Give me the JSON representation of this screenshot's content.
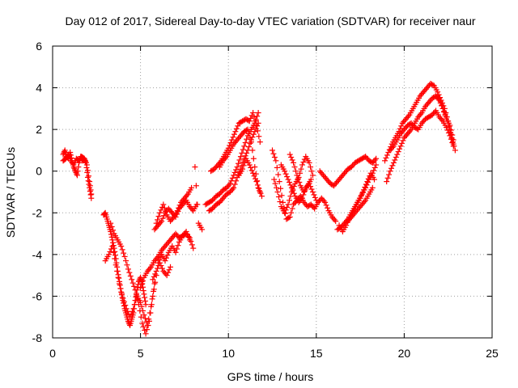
{
  "chart_data": {
    "type": "scatter",
    "title": "Day 012 of 2017, Sidereal Day-to-day VTEC variation (SDTVAR) for receiver naur",
    "xlabel": "GPS time / hours",
    "ylabel": "SDTVAR / TECUs",
    "xlim": [
      0,
      25
    ],
    "ylim": [
      -8,
      6
    ],
    "x_ticks": [
      "0",
      "5",
      "10",
      "15",
      "20",
      "25"
    ],
    "y_ticks": [
      "-8",
      "-6",
      "-4",
      "-2",
      "0",
      "2",
      "4",
      "6"
    ],
    "grid": true,
    "marker": "plus",
    "color": "#ff0000",
    "series": [
      {
        "tracks": [
          {
            "x": [
              0.6,
              0.7,
              0.8,
              0.9,
              1.0,
              1.1,
              1.2,
              1.3,
              1.4,
              1.5,
              1.6,
              1.7,
              1.8,
              1.9,
              2.0,
              2.1,
              2.2
            ],
            "y": [
              0.8,
              1.0,
              0.7,
              0.6,
              0.9,
              0.5,
              0.2,
              0.0,
              -0.2,
              0.4,
              0.7,
              0.5,
              0.6,
              0.4,
              -0.3,
              -0.8,
              -1.3
            ]
          },
          {
            "x": [
              0.6,
              0.75,
              0.9,
              1.05,
              1.2,
              1.35,
              1.5,
              1.65,
              1.8,
              1.95,
              2.1,
              2.2
            ],
            "y": [
              0.5,
              0.6,
              0.8,
              0.5,
              0.3,
              0.6,
              0.5,
              0.7,
              0.6,
              0.3,
              -0.5,
              -1.1
            ]
          },
          {
            "x": [
              2.9,
              3.0,
              3.1,
              3.2,
              3.3,
              3.4,
              3.5,
              3.6,
              3.7,
              3.8,
              3.9,
              4.0,
              4.1,
              4.2,
              4.3,
              4.4,
              4.5,
              4.6,
              4.7,
              4.8,
              4.9,
              5.0,
              5.1,
              5.2,
              5.3
            ],
            "y": [
              -2.1,
              -2.0,
              -2.3,
              -2.6,
              -2.9,
              -3.3,
              -3.7,
              -4.2,
              -4.8,
              -5.3,
              -5.8,
              -6.2,
              -6.6,
              -6.9,
              -7.2,
              -7.4,
              -7.1,
              -6.8,
              -6.2,
              -5.7,
              -5.3,
              -5.1,
              -5.4,
              -5.9,
              -6.4
            ]
          },
          {
            "x": [
              3.0,
              3.2,
              3.4,
              3.6,
              3.8,
              4.0,
              4.2,
              4.4,
              4.6,
              4.8,
              5.0,
              5.2,
              5.4,
              5.6,
              5.8
            ],
            "y": [
              -4.3,
              -4.0,
              -3.6,
              -4.5,
              -5.4,
              -6.1,
              -6.6,
              -7.0,
              -6.6,
              -6.0,
              -6.3,
              -6.9,
              -7.4,
              -6.5,
              -5.4
            ]
          },
          {
            "x": [
              3.3,
              3.5,
              3.7,
              3.9,
              4.1,
              4.3,
              4.5,
              4.7,
              4.9,
              5.1,
              5.3,
              5.5,
              5.7,
              5.9
            ],
            "y": [
              -2.5,
              -3.0,
              -3.3,
              -3.6,
              -4.1,
              -4.7,
              -5.2,
              -5.7,
              -6.4,
              -7.3,
              -7.8,
              -7.2,
              -6.0,
              -5.0
            ]
          },
          {
            "x": [
              5.0,
              5.2,
              5.4,
              5.6,
              5.8,
              6.0,
              6.2,
              6.4,
              6.6,
              6.8,
              7.0,
              7.2,
              7.4,
              7.6,
              7.8,
              8.0
            ],
            "y": [
              -5.6,
              -5.1,
              -4.8,
              -4.6,
              -4.3,
              -4.1,
              -3.8,
              -3.6,
              -3.4,
              -3.2,
              -3.0,
              -3.2,
              -3.1,
              -3.0,
              -3.2,
              -3.7
            ]
          },
          {
            "x": [
              5.8,
              6.0,
              6.2,
              6.4,
              6.6,
              6.8,
              7.0,
              7.2,
              7.4,
              7.6,
              7.8,
              8.0,
              8.2
            ],
            "y": [
              -2.8,
              -2.6,
              -2.4,
              -2.0,
              -1.8,
              -2.0,
              -2.2,
              -1.8,
              -1.6,
              -1.4,
              -1.7,
              -1.9,
              -1.6
            ]
          },
          {
            "x": [
              5.9,
              6.1,
              6.3,
              6.5,
              6.7,
              6.9,
              7.1,
              7.3,
              7.5,
              7.7,
              7.9
            ],
            "y": [
              -2.5,
              -2.0,
              -1.6,
              -2.1,
              -2.4,
              -2.2,
              -1.9,
              -1.5,
              -1.3,
              -1.1,
              -0.8
            ]
          },
          {
            "x": [
              6.0,
              6.2,
              6.4,
              6.6,
              6.8,
              7.0,
              7.2,
              7.4,
              7.6,
              7.8
            ],
            "y": [
              -4.4,
              -4.0,
              -4.3,
              -3.9,
              -3.6,
              -3.9,
              -3.4,
              -3.1,
              -2.9,
              -3.3
            ]
          },
          {
            "x": [
              5.7,
              5.9,
              6.1,
              6.3,
              6.5,
              6.7
            ],
            "y": [
              -5.2,
              -4.8,
              -4.4,
              -4.8,
              -5.0,
              -4.6
            ]
          },
          {
            "x": [
              8.1,
              8.3,
              8.5
            ],
            "y": [
              0.2,
              -2.5,
              -2.8
            ]
          },
          {
            "x": [
              8.7,
              8.9,
              9.1,
              9.3,
              9.5,
              9.7,
              9.9,
              10.1,
              10.3,
              10.5,
              10.7,
              10.9,
              11.1,
              11.3,
              11.5,
              11.7
            ],
            "y": [
              -1.6,
              -1.5,
              -1.4,
              -1.2,
              -1.1,
              -0.9,
              -0.8,
              -0.6,
              -0.2,
              0.2,
              0.7,
              1.2,
              1.7,
              2.0,
              2.3,
              2.8
            ]
          },
          {
            "x": [
              8.9,
              9.1,
              9.3,
              9.5,
              9.7,
              9.9,
              10.1,
              10.3,
              10.5,
              10.7,
              10.9,
              11.1,
              11.3,
              11.5,
              11.7
            ],
            "y": [
              -1.9,
              -1.8,
              -1.6,
              -1.5,
              -1.3,
              -1.1,
              -1.0,
              -0.8,
              -0.3,
              0.1,
              0.6,
              1.0,
              1.5,
              1.9,
              2.3
            ]
          },
          {
            "x": [
              9.0,
              9.2,
              9.4,
              9.6,
              9.8,
              10.0,
              10.2,
              10.4,
              10.6,
              10.8,
              11.0,
              11.2,
              11.4,
              11.6,
              11.8
            ],
            "y": [
              0.0,
              0.1,
              0.3,
              0.5,
              0.8,
              1.1,
              1.5,
              1.9,
              2.3,
              2.4,
              2.5,
              2.4,
              2.8,
              2.2,
              1.4
            ]
          },
          {
            "x": [
              9.5,
              9.7,
              9.9,
              10.1,
              10.3,
              10.5,
              10.7,
              10.9,
              11.1,
              11.3,
              11.5,
              11.7,
              11.9
            ],
            "y": [
              0.2,
              0.5,
              0.7,
              1.0,
              1.3,
              1.5,
              1.7,
              1.9,
              2.0,
              1.4,
              0.2,
              -0.8,
              -1.2
            ]
          },
          {
            "x": [
              10.6,
              10.8,
              11.0,
              11.2,
              11.4,
              11.6,
              11.8
            ],
            "y": [
              -0.2,
              0.1,
              0.6,
              0.3,
              -0.1,
              -0.5,
              -1.0
            ]
          },
          {
            "x": [
              12.5,
              12.7,
              12.9,
              13.1,
              13.3,
              13.5,
              13.7,
              13.9,
              14.1,
              14.3,
              14.5,
              14.7,
              14.9,
              15.1,
              15.3,
              15.5,
              15.7,
              15.9,
              16.1
            ],
            "y": [
              1.0,
              0.5,
              -0.5,
              -1.5,
              -2.3,
              -2.2,
              -1.6,
              -1.4,
              -1.2,
              -1.5,
              -1.7,
              -1.6,
              -1.8,
              -1.5,
              -1.3,
              -1.5,
              -1.9,
              -2.2,
              -2.4
            ]
          },
          {
            "x": [
              12.6,
              12.8,
              13.0,
              13.2,
              13.4,
              13.6,
              13.8,
              14.0,
              14.2,
              14.4,
              14.6,
              14.8
            ],
            "y": [
              -0.4,
              -1.0,
              -1.7,
              -2.0,
              -1.6,
              -1.0,
              -0.6,
              -0.3,
              0.3,
              0.7,
              0.4,
              -0.2
            ]
          },
          {
            "x": [
              13.0,
              13.2,
              13.4,
              13.6,
              13.8,
              14.0,
              14.2,
              14.4,
              14.6,
              14.8,
              15.0
            ],
            "y": [
              0.3,
              0.0,
              -0.4,
              -0.8,
              -1.2,
              -1.5,
              -1.3,
              -0.8,
              -0.6,
              -1.0,
              -1.4
            ]
          },
          {
            "x": [
              13.5,
              13.7,
              13.9,
              14.1,
              14.3,
              14.5,
              14.7
            ],
            "y": [
              0.8,
              0.4,
              -0.2,
              -0.7,
              -1.0,
              -0.7,
              -0.4
            ]
          },
          {
            "x": [
              15.2,
              15.4,
              15.6,
              15.8,
              16.0,
              16.2,
              16.4,
              16.6,
              16.8,
              17.0,
              17.2,
              17.4,
              17.6,
              17.8,
              18.0,
              18.2,
              18.4
            ],
            "y": [
              0.0,
              -0.2,
              -0.4,
              -0.6,
              -0.7,
              -0.5,
              -0.3,
              -0.1,
              0.1,
              0.2,
              0.4,
              0.5,
              0.6,
              0.7,
              0.5,
              0.4,
              0.6
            ]
          },
          {
            "x": [
              16.2,
              16.4,
              16.6,
              16.8,
              17.0,
              17.2,
              17.4,
              17.6,
              17.8,
              18.0,
              18.2,
              18.4
            ],
            "y": [
              -2.8,
              -2.7,
              -2.5,
              -2.3,
              -2.0,
              -1.7,
              -1.4,
              -1.1,
              -0.8,
              -0.4,
              -0.1,
              0.3
            ]
          },
          {
            "x": [
              16.3,
              16.5,
              16.7,
              16.9,
              17.1,
              17.3,
              17.5,
              17.7,
              17.9,
              18.1,
              18.3
            ],
            "y": [
              -2.6,
              -2.9,
              -2.6,
              -2.2,
              -1.9,
              -1.6,
              -1.3,
              -0.9,
              -0.5,
              -0.1,
              -0.4
            ]
          },
          {
            "x": [
              16.8,
              17.0,
              17.2,
              17.4,
              17.6,
              17.8,
              18.0,
              18.2
            ],
            "y": [
              -2.4,
              -2.2,
              -2.0,
              -1.8,
              -1.6,
              -1.4,
              -1.1,
              -0.8
            ]
          },
          {
            "x": [
              18.9,
              19.1,
              19.3,
              19.5,
              19.7,
              19.9,
              20.1,
              20.3,
              20.5,
              20.7,
              20.9,
              21.1,
              21.3,
              21.5,
              21.7,
              21.9,
              22.1,
              22.3,
              22.5,
              22.7,
              22.9
            ],
            "y": [
              0.5,
              0.9,
              1.3,
              1.6,
              1.9,
              2.3,
              2.5,
              2.7,
              3.0,
              3.3,
              3.6,
              3.8,
              4.0,
              4.2,
              4.1,
              3.8,
              3.4,
              3.0,
              2.4,
              1.6,
              1.0
            ]
          },
          {
            "x": [
              19.0,
              19.2,
              19.4,
              19.6,
              19.8,
              20.0,
              20.2,
              20.4,
              20.6,
              20.8,
              21.0,
              21.2,
              21.4,
              21.6,
              21.8,
              22.0,
              22.2,
              22.4,
              22.6,
              22.8
            ],
            "y": [
              -0.5,
              0.0,
              0.4,
              0.8,
              1.2,
              1.6,
              1.8,
              2.0,
              2.3,
              2.6,
              2.8,
              3.1,
              3.3,
              3.5,
              3.6,
              3.4,
              3.0,
              2.6,
              2.0,
              1.3
            ]
          },
          {
            "x": [
              19.2,
              19.4,
              19.6,
              19.8,
              20.0,
              20.2,
              20.4,
              20.6,
              20.8,
              21.0,
              21.2,
              21.4,
              21.6,
              21.8,
              22.0,
              22.2,
              22.4,
              22.6,
              22.8
            ],
            "y": [
              1.0,
              1.2,
              1.5,
              1.8,
              2.0,
              2.2,
              2.3,
              2.1,
              2.0,
              2.3,
              2.5,
              2.6,
              2.7,
              2.9,
              2.6,
              2.4,
              2.1,
              1.7,
              1.2
            ]
          },
          {
            "x": [
              21.8,
              22.0,
              22.2,
              22.4,
              22.6,
              22.8
            ],
            "y": [
              3.6,
              3.5,
              3.0,
              2.5,
              2.2,
              1.5
            ]
          }
        ]
      }
    ]
  }
}
